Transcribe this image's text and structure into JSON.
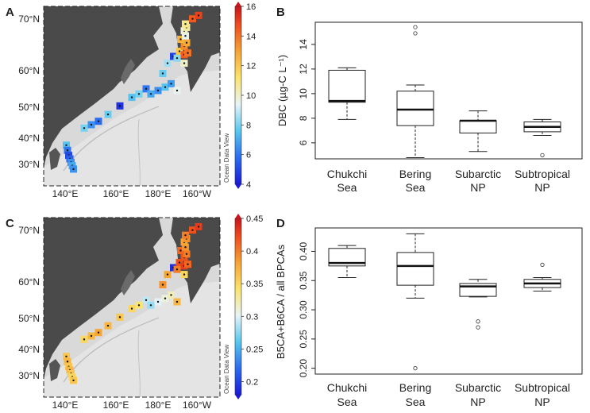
{
  "chart_data": [
    {
      "panel": "A",
      "type": "map",
      "lat_labels": [
        "70°N",
        "60°N",
        "50°N",
        "40°N",
        "30°N"
      ],
      "lon_labels": [
        "140°E",
        "160°E",
        "180°E",
        "160°W"
      ],
      "credit": "Ocean Data View",
      "colorbar": {
        "min": 4,
        "max": 16,
        "ticks": [
          "4",
          "6",
          "8",
          "10",
          "12",
          "14",
          "16"
        ]
      },
      "stations": [
        {
          "lon": 140.5,
          "lat": 34.0,
          "v": 7.5
        },
        {
          "lon": 141.0,
          "lat": 32.5,
          "v": 6.0
        },
        {
          "lon": 141.5,
          "lat": 31.0,
          "v": 5.0
        },
        {
          "lon": 142.0,
          "lat": 30.0,
          "v": 5.5
        },
        {
          "lon": 142.5,
          "lat": 29.0,
          "v": 6.5
        },
        {
          "lon": 143.0,
          "lat": 28.0,
          "v": 7.0
        },
        {
          "lon": 143.5,
          "lat": 27.0,
          "v": 6.5
        },
        {
          "lon": 148.0,
          "lat": 39.0,
          "v": 8.0
        },
        {
          "lon": 151.0,
          "lat": 40.0,
          "v": 6.5
        },
        {
          "lon": 154.0,
          "lat": 41.0,
          "v": 5.8
        },
        {
          "lon": 158.0,
          "lat": 43.0,
          "v": 7.8
        },
        {
          "lon": 163.0,
          "lat": 45.5,
          "v": 4.5
        },
        {
          "lon": 168.0,
          "lat": 48.0,
          "v": 7.5
        },
        {
          "lon": 171.0,
          "lat": 49.0,
          "v": 8.0
        },
        {
          "lon": 174.0,
          "lat": 50.5,
          "v": 6.0
        },
        {
          "lon": 176.0,
          "lat": 49.0,
          "v": 7.0
        },
        {
          "lon": 179.0,
          "lat": 50.0,
          "v": 6.5
        },
        {
          "lon": 182.0,
          "lat": 51.0,
          "v": 7.5
        },
        {
          "lon": 184.5,
          "lat": 52.0,
          "v": 6.8
        },
        {
          "lon": 187.0,
          "lat": 50.0,
          "v": 9.5
        },
        {
          "lon": 181.0,
          "lat": 55.0,
          "v": 7.8
        },
        {
          "lon": 183.0,
          "lat": 58.0,
          "v": 8.5
        },
        {
          "lon": 185.5,
          "lat": 60.0,
          "v": 4.8
        },
        {
          "lon": 187.0,
          "lat": 59.5,
          "v": 8.2
        },
        {
          "lon": 190.0,
          "lat": 58.0,
          "v": 10.0
        },
        {
          "lon": 188.0,
          "lat": 61.5,
          "v": 12.0
        },
        {
          "lon": 190.0,
          "lat": 60.5,
          "v": 14.5
        },
        {
          "lon": 191.5,
          "lat": 61.0,
          "v": 14.0
        },
        {
          "lon": 190.0,
          "lat": 63.0,
          "v": 13.5
        },
        {
          "lon": 191.0,
          "lat": 64.0,
          "v": 12.8
        },
        {
          "lon": 188.5,
          "lat": 65.0,
          "v": 12.5
        },
        {
          "lon": 190.5,
          "lat": 66.0,
          "v": 9.5
        },
        {
          "lon": 190.0,
          "lat": 67.5,
          "v": 9.8
        },
        {
          "lon": 191.0,
          "lat": 68.5,
          "v": 10.5
        },
        {
          "lon": 190.5,
          "lat": 69.5,
          "v": 10.8
        },
        {
          "lon": 193.5,
          "lat": 71.0,
          "v": 14.5
        },
        {
          "lon": 196.0,
          "lat": 72.0,
          "v": 15.0
        }
      ]
    },
    {
      "panel": "B",
      "type": "boxplot",
      "ylabel": "DBC (µg-C L⁻¹)",
      "ylim": [
        4.7,
        15.8
      ],
      "yticks": [
        6,
        8,
        10,
        12,
        14
      ],
      "categories": [
        {
          "line1": "Chukchi",
          "line2": "Sea"
        },
        {
          "line1": "Bering",
          "line2": "Sea"
        },
        {
          "line1": "Subarctic",
          "line2": "NP"
        },
        {
          "line1": "Subtropical",
          "line2": "NP"
        }
      ],
      "boxes": [
        {
          "wlo": 7.9,
          "q1": 9.3,
          "median": 9.4,
          "q3": 11.9,
          "whi": 12.1,
          "outliers": []
        },
        {
          "wlo": 4.8,
          "q1": 7.4,
          "median": 8.7,
          "q3": 10.2,
          "whi": 10.7,
          "outliers": [
            14.9,
            15.4
          ]
        },
        {
          "wlo": 5.3,
          "q1": 6.8,
          "median": 7.8,
          "q3": 7.8,
          "whi": 8.6,
          "outliers": []
        },
        {
          "wlo": 6.6,
          "q1": 6.9,
          "median": 7.3,
          "q3": 7.7,
          "whi": 7.9,
          "outliers": [
            5.0
          ]
        }
      ]
    },
    {
      "panel": "C",
      "type": "map",
      "lat_labels": [
        "70°N",
        "60°N",
        "50°N",
        "40°N",
        "30°N"
      ],
      "lon_labels": [
        "140°E",
        "160°E",
        "180°E",
        "160°W"
      ],
      "credit": "Ocean Data View",
      "colorbar": {
        "min": 0.18,
        "max": 0.45,
        "ticks": [
          "0.2",
          "0.25",
          "0.3",
          "0.35",
          "0.4",
          "0.45"
        ]
      },
      "stations": [
        {
          "lon": 140.5,
          "lat": 34.0,
          "v": 0.36
        },
        {
          "lon": 141.0,
          "lat": 32.5,
          "v": 0.37
        },
        {
          "lon": 141.5,
          "lat": 31.0,
          "v": 0.36
        },
        {
          "lon": 142.0,
          "lat": 30.0,
          "v": 0.37
        },
        {
          "lon": 142.5,
          "lat": 29.0,
          "v": 0.36
        },
        {
          "lon": 143.0,
          "lat": 28.0,
          "v": 0.35
        },
        {
          "lon": 143.5,
          "lat": 27.0,
          "v": 0.36
        },
        {
          "lon": 148.0,
          "lat": 39.0,
          "v": 0.35
        },
        {
          "lon": 151.0,
          "lat": 40.0,
          "v": 0.37
        },
        {
          "lon": 154.0,
          "lat": 41.0,
          "v": 0.38
        },
        {
          "lon": 158.0,
          "lat": 43.0,
          "v": 0.37
        },
        {
          "lon": 163.0,
          "lat": 45.5,
          "v": 0.36
        },
        {
          "lon": 168.0,
          "lat": 48.0,
          "v": 0.35
        },
        {
          "lon": 171.0,
          "lat": 49.0,
          "v": 0.34
        },
        {
          "lon": 174.0,
          "lat": 50.5,
          "v": 0.29
        },
        {
          "lon": 176.0,
          "lat": 49.0,
          "v": 0.28
        },
        {
          "lon": 179.0,
          "lat": 50.0,
          "v": 0.3
        },
        {
          "lon": 182.0,
          "lat": 51.0,
          "v": 0.31
        },
        {
          "lon": 184.5,
          "lat": 52.0,
          "v": 0.32
        },
        {
          "lon": 187.0,
          "lat": 50.0,
          "v": 0.37
        },
        {
          "lon": 181.0,
          "lat": 55.0,
          "v": 0.39
        },
        {
          "lon": 183.0,
          "lat": 58.0,
          "v": 0.38
        },
        {
          "lon": 185.5,
          "lat": 60.0,
          "v": 0.19
        },
        {
          "lon": 187.0,
          "lat": 59.5,
          "v": 0.4
        },
        {
          "lon": 190.0,
          "lat": 58.0,
          "v": 0.35
        },
        {
          "lon": 188.0,
          "lat": 61.5,
          "v": 0.42
        },
        {
          "lon": 190.0,
          "lat": 60.5,
          "v": 0.43
        },
        {
          "lon": 191.5,
          "lat": 61.0,
          "v": 0.41
        },
        {
          "lon": 190.0,
          "lat": 63.0,
          "v": 0.42
        },
        {
          "lon": 191.0,
          "lat": 64.0,
          "v": 0.4
        },
        {
          "lon": 188.5,
          "lat": 65.0,
          "v": 0.41
        },
        {
          "lon": 190.5,
          "lat": 66.0,
          "v": 0.39
        },
        {
          "lon": 190.0,
          "lat": 67.5,
          "v": 0.38
        },
        {
          "lon": 191.0,
          "lat": 68.5,
          "v": 0.39
        },
        {
          "lon": 190.5,
          "lat": 69.5,
          "v": 0.4
        },
        {
          "lon": 193.5,
          "lat": 71.0,
          "v": 0.42
        },
        {
          "lon": 196.0,
          "lat": 72.0,
          "v": 0.43
        }
      ]
    },
    {
      "panel": "D",
      "type": "boxplot",
      "ylabel": "B5CA+B6CA / all BPCAs",
      "ylim": [
        0.19,
        0.44
      ],
      "yticks": [
        0.2,
        0.25,
        0.3,
        0.35,
        0.4
      ],
      "yticklabels": [
        "0.20",
        "0.25",
        "0.30",
        "0.35",
        "0.40"
      ],
      "categories": [
        {
          "line1": "Chukchi",
          "line2": "Sea"
        },
        {
          "line1": "Bering",
          "line2": "Sea"
        },
        {
          "line1": "Subarctic",
          "line2": "NP"
        },
        {
          "line1": "Subtropical",
          "line2": "NP"
        }
      ],
      "boxes": [
        {
          "wlo": 0.355,
          "q1": 0.375,
          "median": 0.38,
          "q3": 0.405,
          "whi": 0.41,
          "outliers": []
        },
        {
          "wlo": 0.32,
          "q1": 0.342,
          "median": 0.375,
          "q3": 0.398,
          "whi": 0.43,
          "outliers": [
            0.2
          ]
        },
        {
          "wlo": 0.322,
          "q1": 0.323,
          "median": 0.34,
          "q3": 0.345,
          "whi": 0.352,
          "outliers": [
            0.27,
            0.28
          ]
        },
        {
          "wlo": 0.332,
          "q1": 0.338,
          "median": 0.345,
          "q3": 0.352,
          "whi": 0.355,
          "outliers": [
            0.377
          ]
        }
      ]
    }
  ]
}
